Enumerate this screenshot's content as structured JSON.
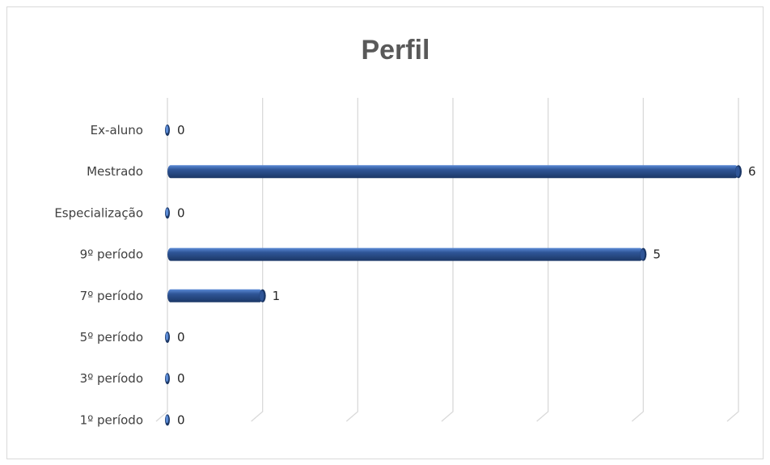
{
  "chart_data": {
    "type": "bar",
    "orientation": "horizontal",
    "title": "Perfil",
    "categories": [
      "Ex-aluno",
      "Mestrado",
      "Especialização",
      "9º período",
      "7º período",
      "5º período",
      "3º período",
      "1º período"
    ],
    "values": [
      0,
      6,
      0,
      5,
      1,
      0,
      0,
      0
    ],
    "xlim": [
      0,
      6
    ],
    "grid": true,
    "legend": "none",
    "bar_color": "#2F5597",
    "bar_highlight": "#5B8BD6",
    "bar_shadow": "#1B3766",
    "label_color": "#262626"
  }
}
